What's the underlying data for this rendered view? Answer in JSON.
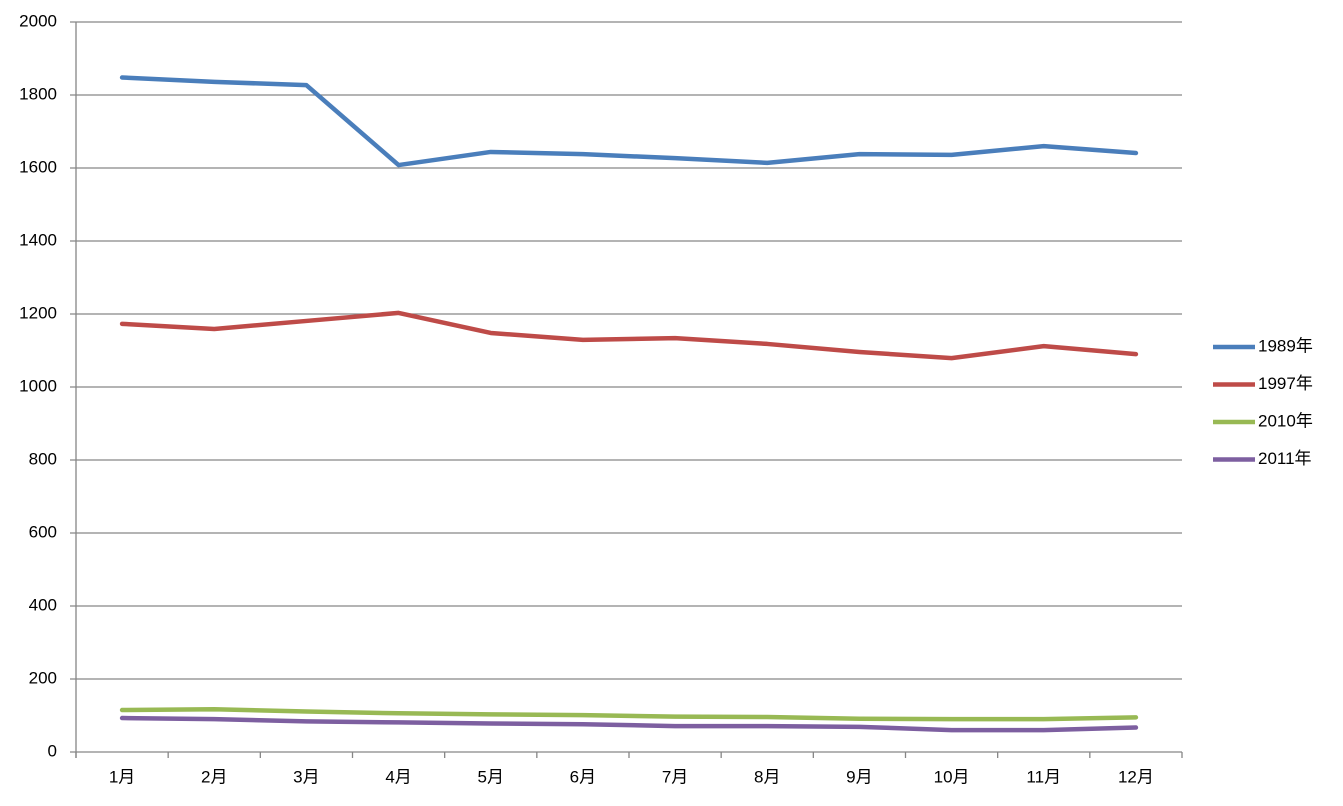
{
  "chart_data": {
    "type": "line",
    "categories": [
      "1月",
      "2月",
      "3月",
      "4月",
      "5月",
      "6月",
      "7月",
      "8月",
      "9月",
      "10月",
      "11月",
      "12月"
    ],
    "series": [
      {
        "name": "1989年",
        "color": "#4a7ebb",
        "values": [
          1848,
          1836,
          1827,
          1608,
          1644,
          1638,
          1627,
          1614,
          1638,
          1636,
          1660,
          1641
        ]
      },
      {
        "name": "1997年",
        "color": "#be4b48",
        "values": [
          1173,
          1159,
          1181,
          1203,
          1148,
          1129,
          1134,
          1118,
          1096,
          1079,
          1112,
          1090
        ]
      },
      {
        "name": "2010年",
        "color": "#98b954",
        "values": [
          115,
          117,
          111,
          106,
          103,
          101,
          97,
          96,
          91,
          90,
          90,
          95
        ]
      },
      {
        "name": "2011年",
        "color": "#7d5fa0",
        "values": [
          93,
          90,
          84,
          81,
          78,
          76,
          71,
          71,
          69,
          60,
          60,
          67
        ]
      }
    ],
    "ylim": [
      0,
      2000
    ],
    "yticks": [
      0,
      200,
      400,
      600,
      800,
      1000,
      1200,
      1400,
      1600,
      1800,
      2000
    ],
    "grid": true,
    "legend": "right"
  }
}
